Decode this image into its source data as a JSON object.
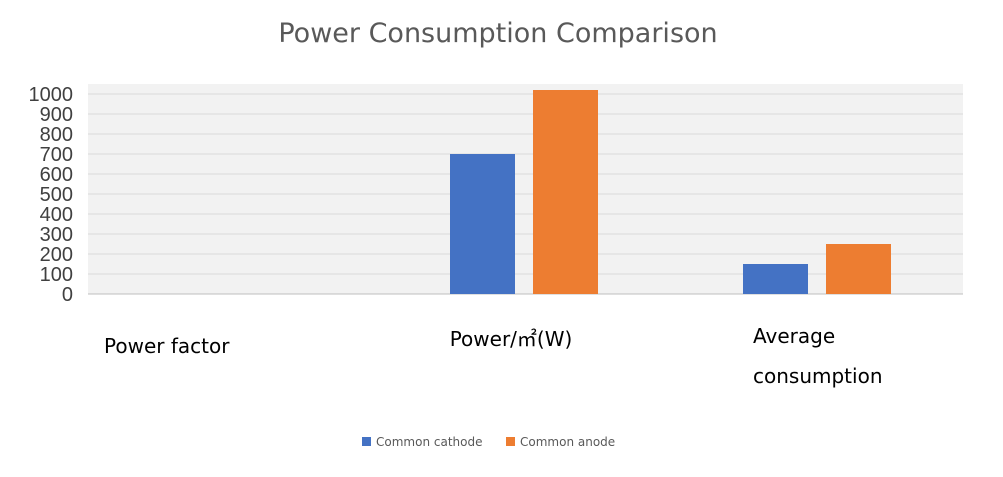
{
  "chart_data": {
    "type": "bar",
    "title": "Power Consumption Comparison",
    "xlabel": "",
    "ylabel": "",
    "ylim": [
      0,
      1000
    ],
    "yticks": [
      0,
      100,
      200,
      300,
      400,
      500,
      600,
      700,
      800,
      900,
      1000
    ],
    "grid": true,
    "legend_position": "bottom",
    "categories": [
      [
        "Power factor"
      ],
      [
        "Power/㎡(W)"
      ],
      [
        "Average",
        "consumption"
      ]
    ],
    "series": [
      {
        "name": "Common cathode",
        "color": "#4472c4",
        "values": [
          0,
          700,
          150
        ]
      },
      {
        "name": "Common anode",
        "color": "#ed7d31",
        "values": [
          0,
          1020,
          250
        ]
      }
    ]
  }
}
